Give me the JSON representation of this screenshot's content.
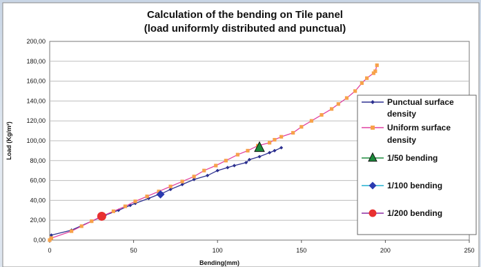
{
  "chart_data": {
    "type": "line",
    "title": "Calculation of the bending on Tile panel",
    "subtitle": "(load uniformly distributed and punctual)",
    "xlabel": "Bending(mm)",
    "ylabel": "Load (Kg/m²)",
    "xlim": [
      0,
      250
    ],
    "ylim": [
      0,
      200
    ],
    "x_ticks": [
      "0",
      "50",
      "100",
      "150",
      "200",
      "250"
    ],
    "y_ticks": [
      "0,00",
      "20,00",
      "40,00",
      "60,00",
      "80,00",
      "100,00",
      "120,00",
      "140,00",
      "160,00",
      "180,00",
      "200,00"
    ],
    "grid": true,
    "legend_position": "right",
    "series": [
      {
        "name": "Punctual surface density",
        "color": "#2b2f8f",
        "marker": "diamond",
        "points": [
          [
            0,
            0
          ],
          [
            1,
            5
          ],
          [
            13,
            10
          ],
          [
            25,
            19
          ],
          [
            33,
            25
          ],
          [
            41,
            30
          ],
          [
            48,
            35
          ],
          [
            51,
            37
          ],
          [
            59,
            42
          ],
          [
            65,
            46
          ],
          [
            67,
            47
          ],
          [
            72,
            51
          ],
          [
            79,
            56
          ],
          [
            86,
            61
          ],
          [
            94,
            65
          ],
          [
            100,
            70
          ],
          [
            106,
            73
          ],
          [
            110,
            75
          ],
          [
            117,
            78
          ],
          [
            119,
            81
          ],
          [
            125,
            84
          ],
          [
            131,
            88
          ],
          [
            134,
            90
          ],
          [
            138,
            93
          ]
        ]
      },
      {
        "name": "Uniform surface density",
        "color": "#e040a0",
        "marker": "square",
        "marker_color": "#f7a24a",
        "points": [
          [
            0,
            0
          ],
          [
            1,
            2
          ],
          [
            13,
            9
          ],
          [
            19,
            14
          ],
          [
            25,
            19
          ],
          [
            31,
            24
          ],
          [
            38,
            29
          ],
          [
            45,
            34
          ],
          [
            51,
            39
          ],
          [
            58,
            44
          ],
          [
            65,
            49
          ],
          [
            72,
            54
          ],
          [
            79,
            59
          ],
          [
            86,
            64
          ],
          [
            92,
            70
          ],
          [
            99,
            75
          ],
          [
            105,
            80
          ],
          [
            112,
            86
          ],
          [
            118,
            90
          ],
          [
            124,
            95
          ],
          [
            131,
            98
          ],
          [
            134,
            101
          ],
          [
            138,
            104
          ],
          [
            145,
            108
          ],
          [
            150,
            114
          ],
          [
            156,
            120
          ],
          [
            162,
            126
          ],
          [
            168,
            132
          ],
          [
            172,
            137
          ],
          [
            177,
            143
          ],
          [
            182,
            150
          ],
          [
            186,
            158
          ],
          [
            189,
            163
          ],
          [
            193,
            168
          ],
          [
            194,
            170
          ],
          [
            195,
            176
          ]
        ]
      },
      {
        "name": "1/50 bending",
        "color": "#1a8a3a",
        "marker": "triangle",
        "points": [
          [
            125,
            93
          ]
        ]
      },
      {
        "name": "1/100 bending",
        "color": "#2b3ab0",
        "line_color": "#20b0d0",
        "marker": "diamond",
        "points": [
          [
            66,
            46
          ]
        ]
      },
      {
        "name": "1/200 bending",
        "color": "#e83030",
        "line_color": "#8a2aa0",
        "marker": "circle",
        "points": [
          [
            31,
            24
          ]
        ]
      }
    ]
  }
}
